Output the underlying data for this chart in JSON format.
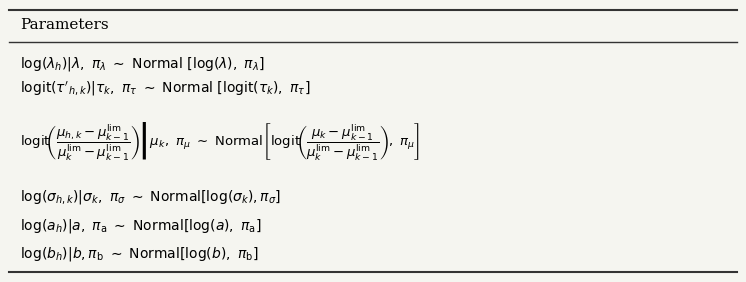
{
  "title": "Parameters",
  "title_fontsize": 11,
  "row_fontsize": 10.5,
  "background_color": "#f5f5f0",
  "fig_width": 7.46,
  "fig_height": 2.82,
  "rows": [
    "$\\log(\\lambda_h)|\\lambda,\\ \\pi_\\lambda\\ \\sim\\ $ Normal $[\\log(\\lambda),\\ \\pi_\\lambda]$",
    "$\\mathrm{logit}(\\tau^{\\prime}_{h,k})|\\tau_k,\\ \\pi_\\tau\\ \\sim\\ $ Normal $[\\mathrm{logit}(\\tau_k),\\ \\pi_\\tau]$",
    "$\\mathrm{logit}\\!\\left(\\dfrac{\\mu_{h,k}-\\mu^{\\mathrm{lim}}_{k-1}}{\\mu^{\\mathrm{lim}}_k - \\mu^{\\mathrm{lim}}_{k-1}}\\right)\\!|\\mu_k,\\ \\pi_\\mu\\ \\sim\\ $ Normal $\\!\\left[\\mathrm{logit}\\!\\left(\\dfrac{\\mu_k - \\mu^{\\mathrm{lim}}_{k-1}}{\\mu^{\\mathrm{lim}}_k - \\mu^{\\mathrm{lim}}_{k-1}}\\right),\\ \\pi_\\mu\\right]$",
    "$\\log(\\sigma_{h,k})|\\sigma_k,\\ \\pi_\\sigma\\ \\sim\\ $ Normal$[\\log(\\sigma_k), \\pi_\\sigma]$",
    "$\\log(a_h)|a,\\ \\pi_\\mathrm{a}\\ \\sim\\ $ Normal$[\\log(a),\\ \\pi_\\mathrm{a}]$",
    "$\\log(b_h)|b, \\pi_\\mathrm{b}\\ \\sim\\ $ Normal$[\\log(b),\\ \\pi_\\mathrm{b}]$"
  ]
}
